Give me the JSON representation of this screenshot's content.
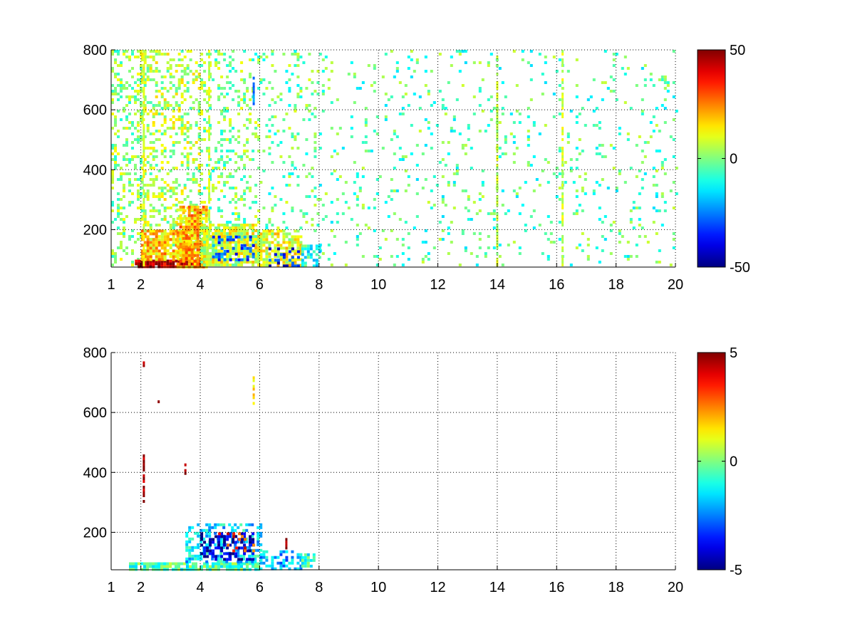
{
  "chart_data": [
    {
      "type": "heatmap",
      "panel": "top",
      "title": "",
      "xlabel": "",
      "ylabel": "",
      "xlim": [
        1,
        20
      ],
      "ylim": [
        75,
        800
      ],
      "x_ticks": [
        1,
        2,
        4,
        6,
        8,
        10,
        12,
        14,
        16,
        18,
        20
      ],
      "y_ticks": [
        200,
        400,
        600,
        800
      ],
      "grid": true,
      "colormap": "jet",
      "color_range": [
        -50,
        50
      ],
      "colorbar_ticks": [
        -50,
        0,
        50
      ],
      "colorbar_position": "right",
      "blanks_shown_as": "white",
      "value_regions": [
        {
          "x": [
            1.0,
            2.0
          ],
          "y": [
            80,
            800
          ],
          "level": 2,
          "density": 0.3
        },
        {
          "x": [
            2.0,
            4.0
          ],
          "y": [
            100,
            800
          ],
          "level": 5,
          "density": 0.32
        },
        {
          "x": [
            4.0,
            6.0
          ],
          "y": [
            220,
            800
          ],
          "level": 0,
          "density": 0.22
        },
        {
          "x": [
            6.0,
            8.0
          ],
          "y": [
            200,
            800
          ],
          "level": -2,
          "density": 0.12
        },
        {
          "x": [
            8.0,
            20.0
          ],
          "y": [
            80,
            800
          ],
          "level": -4,
          "density": 0.07
        },
        {
          "x": [
            1.8,
            4.0
          ],
          "y": [
            80,
            100
          ],
          "level": 45,
          "density": 0.95
        },
        {
          "x": [
            2.0,
            3.8
          ],
          "y": [
            100,
            200
          ],
          "level": 18,
          "density": 0.75
        },
        {
          "x": [
            3.2,
            4.2
          ],
          "y": [
            80,
            280
          ],
          "level": 20,
          "density": 0.8
        },
        {
          "x": [
            4.0,
            6.0
          ],
          "y": [
            80,
            220
          ],
          "level": 8,
          "density": 0.85
        },
        {
          "x": [
            4.4,
            5.8
          ],
          "y": [
            100,
            180
          ],
          "level": -30,
          "density": 0.35
        },
        {
          "x": [
            6.0,
            7.4
          ],
          "y": [
            80,
            200
          ],
          "level": 10,
          "density": 0.7
        },
        {
          "x": [
            6.3,
            7.3
          ],
          "y": [
            80,
            150
          ],
          "level": -35,
          "density": 0.3
        },
        {
          "x": [
            7.4,
            8.0
          ],
          "y": [
            80,
            150
          ],
          "level": -10,
          "density": 0.6
        }
      ],
      "streaks": [
        {
          "x": 2.1,
          "y": [
            80,
            800
          ],
          "level": 10
        },
        {
          "x": 4.3,
          "y": [
            80,
            800
          ],
          "level": 8
        },
        {
          "x": 5.8,
          "y": [
            620,
            720
          ],
          "level": -25
        },
        {
          "x": 14.0,
          "y": [
            80,
            800
          ],
          "level": 6
        },
        {
          "x": 16.2,
          "y": [
            80,
            800
          ],
          "level": 8
        }
      ]
    },
    {
      "type": "heatmap",
      "panel": "bottom",
      "title": "",
      "xlabel": "",
      "ylabel": "",
      "xlim": [
        1,
        20
      ],
      "ylim": [
        75,
        800
      ],
      "x_ticks": [
        1,
        2,
        4,
        6,
        8,
        10,
        12,
        14,
        16,
        18,
        20
      ],
      "y_ticks": [
        200,
        400,
        600,
        800
      ],
      "grid": true,
      "colormap": "jet",
      "color_range": [
        -5,
        5
      ],
      "colorbar_ticks": [
        -5,
        0,
        5
      ],
      "colorbar_position": "right",
      "blanks_shown_as": "white",
      "value_regions": [
        {
          "x": [
            1.6,
            6.0
          ],
          "y": [
            80,
            100
          ],
          "level": -0.5,
          "density": 0.85
        },
        {
          "x": [
            3.5,
            6.0
          ],
          "y": [
            100,
            230
          ],
          "level": -1.5,
          "density": 0.45
        },
        {
          "x": [
            4.0,
            5.8
          ],
          "y": [
            110,
            200
          ],
          "level": -4.5,
          "density": 0.5
        },
        {
          "x": [
            4.6,
            5.8
          ],
          "y": [
            140,
            200
          ],
          "level": 3.5,
          "density": 0.12
        },
        {
          "x": [
            6.0,
            7.4
          ],
          "y": [
            80,
            140
          ],
          "level": -2.0,
          "density": 0.5
        },
        {
          "x": [
            7.4,
            7.8
          ],
          "y": [
            85,
            130
          ],
          "level": -0.8,
          "density": 0.7
        }
      ],
      "streaks": [
        {
          "x": 2.1,
          "y": [
            280,
            460
          ],
          "level": 4.5
        },
        {
          "x": 2.1,
          "y": [
            760,
            780
          ],
          "level": 4.5
        },
        {
          "x": 2.6,
          "y": [
            630,
            650
          ],
          "level": 4.8
        },
        {
          "x": 3.5,
          "y": [
            400,
            430
          ],
          "level": 4.8
        },
        {
          "x": 5.8,
          "y": [
            630,
            730
          ],
          "level": 1.5
        },
        {
          "x": 6.9,
          "y": [
            150,
            200
          ],
          "level": 4.8
        }
      ]
    }
  ]
}
